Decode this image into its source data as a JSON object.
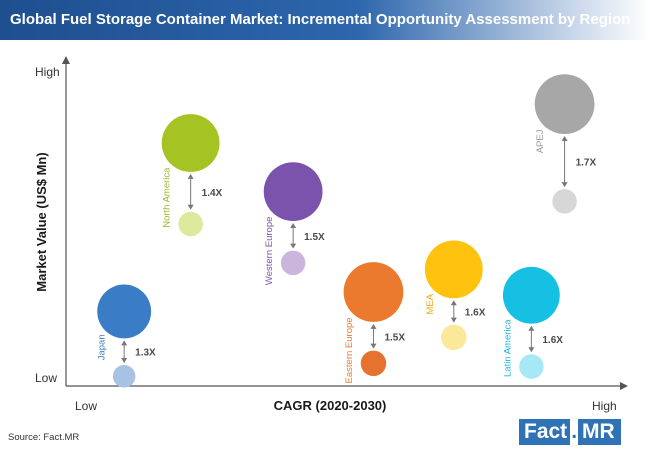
{
  "header": {
    "title": "Global Fuel Storage Container Market: Incremental Opportunity Assessment by Region"
  },
  "footer": {
    "source": "Source: Fact.MR",
    "logo_left": "Fact",
    "logo_dot": ".",
    "logo_right": "MR"
  },
  "chart_data": {
    "type": "bubble",
    "title": "Global Fuel Storage Container Market: Incremental Opportunity Assessment by Region",
    "xlabel": "CAGR (2020-2030)",
    "ylabel": "Market Value (US$ Mn)",
    "x_ticks": [
      "Low",
      "High"
    ],
    "y_ticks": [
      "Low",
      "High"
    ],
    "xlim": [
      0,
      10
    ],
    "ylim": [
      0,
      10
    ],
    "series": [
      {
        "name": "Japan",
        "multiplier": "1.3X",
        "x": 1.05,
        "y_current": 0.3,
        "y_future": 2.3,
        "size_current": 2.3,
        "size_future": 5.5,
        "color_current": "#a8c2e4",
        "color_future": "#3a7cc5",
        "label_color": "#3a7cc5"
      },
      {
        "name": "North America",
        "multiplier": "1.4X",
        "x": 2.25,
        "y_current": 5.0,
        "y_future": 7.5,
        "size_current": 2.5,
        "size_future": 5.9,
        "color_current": "#dcea9c",
        "color_future": "#a5c423",
        "label_color": "#9bb927"
      },
      {
        "name": "Western Europe",
        "multiplier": "1.5X",
        "x": 4.1,
        "y_current": 3.8,
        "y_future": 6.0,
        "size_current": 2.5,
        "size_future": 6.0,
        "color_current": "#c9b5de",
        "color_future": "#7b53ad",
        "label_color": "#7b53ad"
      },
      {
        "name": "Eastern Europe",
        "multiplier": "1.5X",
        "x": 5.55,
        "y_current": 0.7,
        "y_future": 2.9,
        "size_current": 2.6,
        "size_future": 6.1,
        "color_current": "#e5722e",
        "color_future": "#ec7a2e",
        "label_color": "#e87a33"
      },
      {
        "name": "MEA",
        "multiplier": "1.6X",
        "x": 7.0,
        "y_current": 1.5,
        "y_future": 3.6,
        "size_current": 2.6,
        "size_future": 5.9,
        "color_current": "#fce899",
        "color_future": "#ffc20e",
        "label_color": "#e8ad18"
      },
      {
        "name": "Latin America",
        "multiplier": "1.6X",
        "x": 8.4,
        "y_current": 0.6,
        "y_future": 2.8,
        "size_current": 2.5,
        "size_future": 5.8,
        "color_current": "#a6e8f5",
        "color_future": "#16c0e3",
        "label_color": "#1fb2d6"
      },
      {
        "name": "APEJ",
        "multiplier": "1.7X",
        "x": 9.0,
        "y_current": 5.7,
        "y_future": 8.7,
        "size_current": 2.5,
        "size_future": 6.1,
        "color_current": "#d7d7d7",
        "color_future": "#a7a7a7",
        "label_color": "#9a9a9a"
      }
    ]
  }
}
